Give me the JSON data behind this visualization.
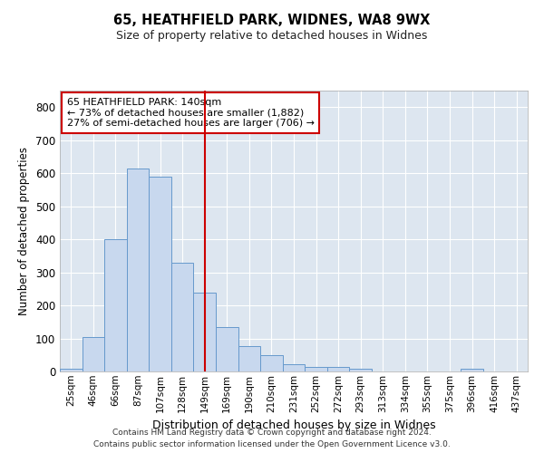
{
  "title1": "65, HEATHFIELD PARK, WIDNES, WA8 9WX",
  "title2": "Size of property relative to detached houses in Widnes",
  "xlabel": "Distribution of detached houses by size in Widnes",
  "ylabel": "Number of detached properties",
  "categories": [
    "25sqm",
    "46sqm",
    "66sqm",
    "87sqm",
    "107sqm",
    "128sqm",
    "149sqm",
    "169sqm",
    "190sqm",
    "210sqm",
    "231sqm",
    "252sqm",
    "272sqm",
    "293sqm",
    "313sqm",
    "334sqm",
    "355sqm",
    "375sqm",
    "396sqm",
    "416sqm",
    "437sqm"
  ],
  "values": [
    8,
    105,
    400,
    615,
    590,
    330,
    238,
    133,
    76,
    48,
    21,
    15,
    15,
    8,
    0,
    0,
    0,
    0,
    8,
    0,
    0
  ],
  "bar_color": "#c8d8ee",
  "bar_edge_color": "#6699cc",
  "bar_width": 1.0,
  "vline_x": 6.0,
  "vline_color": "#cc0000",
  "annotation_line1": "65 HEATHFIELD PARK: 140sqm",
  "annotation_line2": "← 73% of detached houses are smaller (1,882)",
  "annotation_line3": "27% of semi-detached houses are larger (706) →",
  "annotation_box_color": "#cc0000",
  "ylim": [
    0,
    850
  ],
  "yticks": [
    0,
    100,
    200,
    300,
    400,
    500,
    600,
    700,
    800
  ],
  "bg_color": "#dde6f0",
  "grid_color": "#ffffff",
  "footer1": "Contains HM Land Registry data © Crown copyright and database right 2024.",
  "footer2": "Contains public sector information licensed under the Open Government Licence v3.0."
}
